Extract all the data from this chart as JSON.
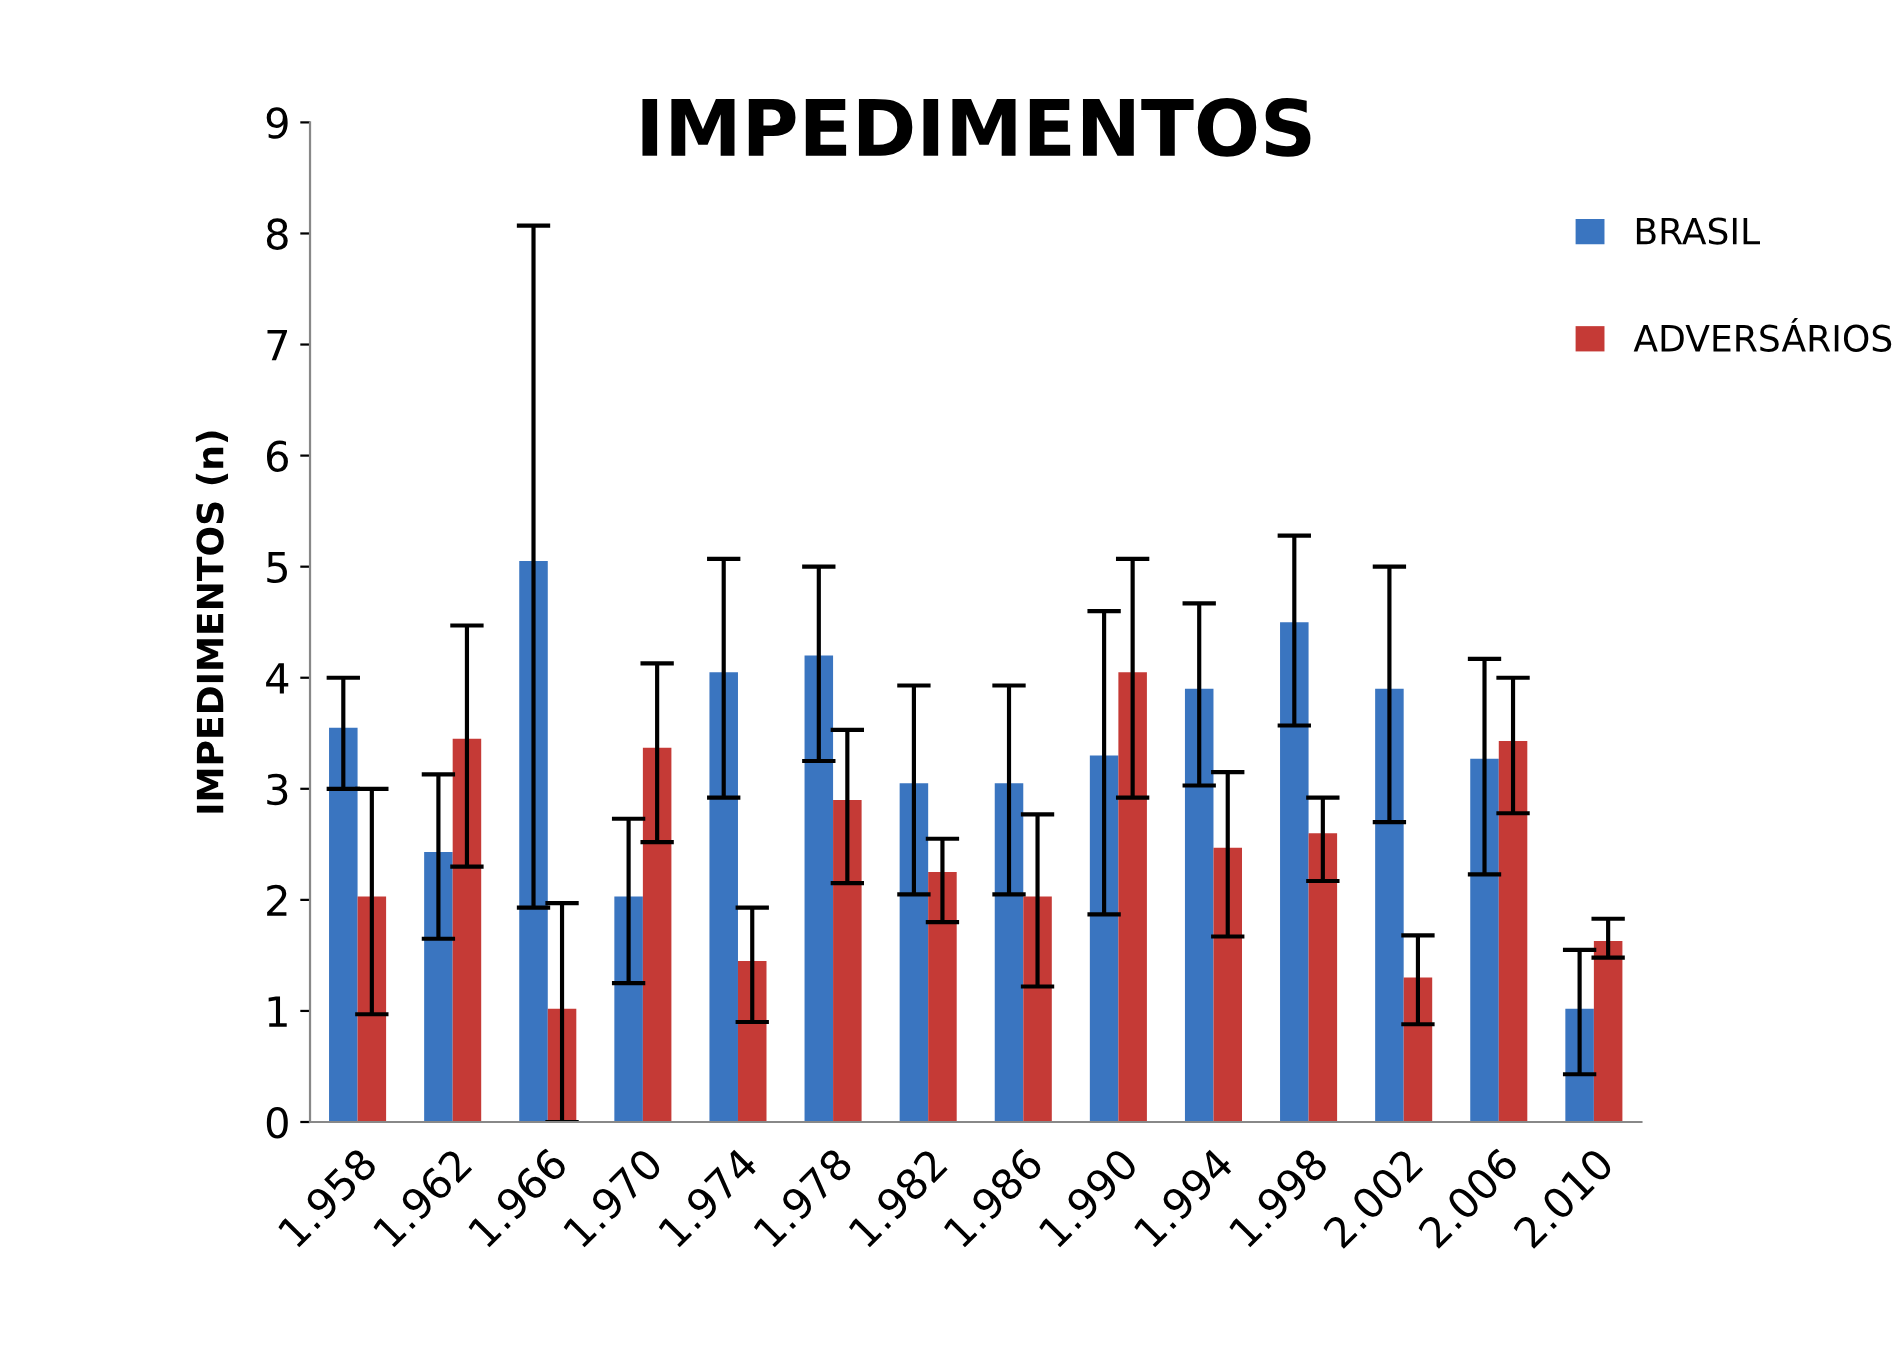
{
  "chart_data": {
    "type": "bar",
    "title": "IMPEDIMENTOS",
    "ylabel": "IMPEDIMENTOS (n)",
    "categories": [
      "1.958",
      "1.962",
      "1.966",
      "1.970",
      "1.974",
      "1.978",
      "1.982",
      "1.986",
      "1.990",
      "1.994",
      "1.998",
      "2.002",
      "2.006",
      "2.010"
    ],
    "series": [
      {
        "name": "BRASIL",
        "color": "#3a75c0",
        "values": [
          3.55,
          2.43,
          5.05,
          2.03,
          4.05,
          4.2,
          3.05,
          3.05,
          3.3,
          3.9,
          4.5,
          3.9,
          3.27,
          1.02
        ],
        "errors": [
          [
            3.0,
            4.0
          ],
          [
            1.65,
            3.13
          ],
          [
            1.93,
            8.07
          ],
          [
            1.25,
            2.73
          ],
          [
            2.92,
            5.07
          ],
          [
            3.25,
            5.0
          ],
          [
            2.05,
            3.93
          ],
          [
            2.05,
            3.93
          ],
          [
            1.87,
            4.6
          ],
          [
            3.03,
            4.67
          ],
          [
            3.57,
            5.28
          ],
          [
            2.7,
            5.0
          ],
          [
            2.23,
            4.17
          ],
          [
            0.43,
            1.55
          ]
        ]
      },
      {
        "name": "ADVERSÁRIOS",
        "color": "#c53a36",
        "values": [
          2.03,
          3.45,
          1.02,
          3.37,
          1.45,
          2.9,
          2.25,
          2.03,
          4.05,
          2.47,
          2.6,
          1.3,
          3.43,
          1.63
        ],
        "errors": [
          [
            0.97,
            3.0
          ],
          [
            2.3,
            4.47
          ],
          [
            0,
            1.97
          ],
          [
            2.52,
            4.13
          ],
          [
            0.9,
            1.93
          ],
          [
            2.15,
            3.53
          ],
          [
            1.8,
            2.55
          ],
          [
            1.22,
            2.77
          ],
          [
            2.92,
            5.07
          ],
          [
            1.67,
            3.15
          ],
          [
            2.17,
            2.92
          ],
          [
            0.88,
            1.68
          ],
          [
            2.78,
            4.0
          ],
          [
            1.48,
            1.83
          ]
        ]
      }
    ],
    "ylim": [
      0,
      9
    ],
    "yticks": [
      0,
      1,
      2,
      3,
      4,
      5,
      6,
      7,
      8,
      9
    ],
    "grid": false,
    "legend": "top right"
  }
}
